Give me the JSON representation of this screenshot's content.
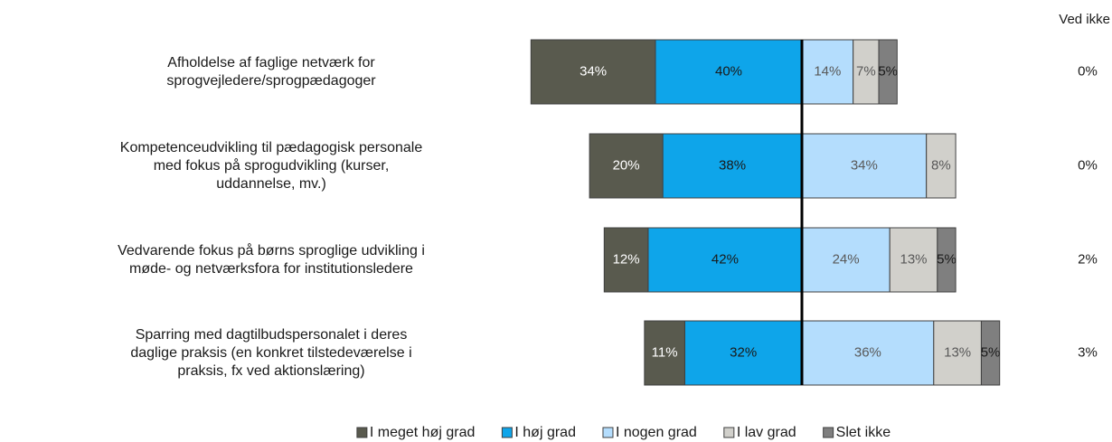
{
  "chart_data": {
    "type": "diverging_bar",
    "categories": [
      "Afholdelse af faglige netværk for sprogvejledere/sprogpædagoger",
      "Kompetenceudvikling til pædagogisk personale med fokus på sprogudvikling (kurser, uddannelse, mv.)",
      "Vedvarende fokus på børns sproglige udvikling i møde- og netværksfora for institutionsledere",
      "Sparring med dagtilbudspersonalet i deres daglige praksis (en konkret tilstedeværelse i praksis, fx ved aktionslæring)"
    ],
    "series": [
      {
        "name": "I meget høj grad",
        "color": "#595a4e",
        "side": "left",
        "label_color": "#ffffff",
        "values": [
          34,
          20,
          12,
          11
        ],
        "value_labels": [
          "34%",
          "20%",
          "12%",
          "11%"
        ]
      },
      {
        "name": "I høj grad",
        "color": "#0ea5ea",
        "side": "left",
        "label_color": "#1a1a1a",
        "values": [
          40,
          38,
          42,
          32
        ],
        "value_labels": [
          "40%",
          "38%",
          "42%",
          "32%"
        ]
      },
      {
        "name": "I nogen grad",
        "color": "#b4ddfd",
        "side": "right",
        "label_color": "#595959",
        "values": [
          14,
          34,
          24,
          36
        ],
        "value_labels": [
          "14%",
          "34%",
          "24%",
          "36%"
        ]
      },
      {
        "name": "I lav grad",
        "color": "#d1d0cb",
        "side": "right",
        "label_color": "#595959",
        "values": [
          7,
          8,
          13,
          13
        ],
        "value_labels": [
          "7%",
          "8%",
          "13%",
          "13%"
        ]
      },
      {
        "name": "Slet ikke",
        "color": "#7f7f7f",
        "side": "right",
        "label_color": "#1a1a1a",
        "values": [
          5,
          0,
          5,
          5
        ],
        "value_labels": [
          "5%",
          null,
          "5%",
          "5%"
        ]
      }
    ],
    "dont_know": {
      "name": "Ved ikke",
      "values": [
        0,
        0,
        2,
        3
      ],
      "value_labels": [
        "0%",
        "0%",
        "2%",
        "3%"
      ]
    },
    "legend": "bottom"
  }
}
